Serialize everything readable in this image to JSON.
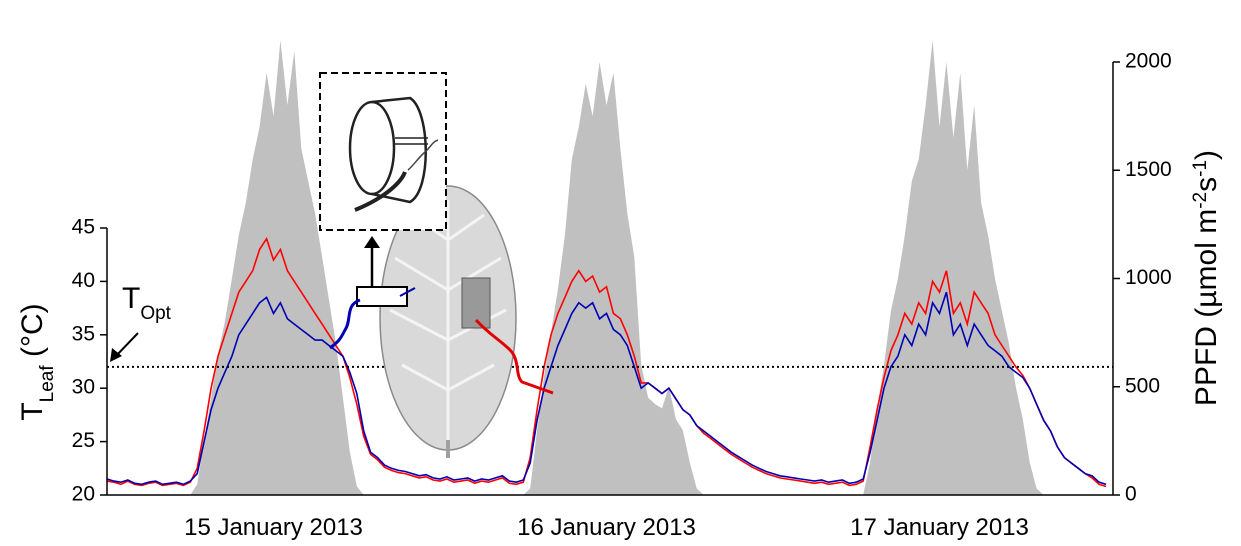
{
  "chart_data": {
    "type": "line",
    "x": [
      0,
      0.5,
      1,
      1.5,
      2,
      2.5,
      3,
      3.5,
      4,
      4.5,
      5,
      5.5,
      6,
      6.5,
      7,
      7.5,
      8,
      8.5,
      9,
      9.5,
      10,
      10.5,
      11,
      11.5,
      12,
      12.5,
      13,
      13.5,
      14,
      14.5,
      15,
      15.5,
      16,
      16.5,
      17,
      17.5,
      18,
      18.5,
      19,
      19.5,
      20,
      20.5,
      21,
      21.5,
      22,
      22.5,
      23,
      23.5,
      24,
      24.5,
      25,
      25.5,
      26,
      26.5,
      27,
      27.5,
      28,
      28.5,
      29,
      29.5,
      30,
      30.5,
      31,
      31.5,
      32,
      32.5,
      33,
      33.5,
      34,
      34.5,
      35,
      35.5,
      36,
      36.5,
      37,
      37.5,
      38,
      38.5,
      39,
      39.5,
      40,
      40.5,
      41,
      41.5,
      42,
      42.5,
      43,
      43.5,
      44,
      44.5,
      45,
      45.5,
      46,
      46.5,
      47,
      47.5,
      48,
      48.5,
      49,
      49.5,
      50,
      50.5,
      51,
      51.5,
      52,
      52.5,
      53,
      53.5,
      54,
      54.5,
      55,
      55.5,
      56,
      56.5,
      57,
      57.5,
      58,
      58.5,
      59,
      59.5,
      60,
      60.5,
      61,
      61.5,
      62,
      62.5,
      63,
      63.5,
      64,
      64.5,
      65,
      65.5,
      66,
      66.5,
      67,
      67.5,
      68,
      68.5,
      69,
      69.5,
      70,
      70.5,
      71,
      71.5,
      72
    ],
    "xlim": [
      0,
      72
    ],
    "xticks": [
      {
        "value": 12,
        "label": "15 January 2013"
      },
      {
        "value": 36,
        "label": "16 January 2013"
      },
      {
        "value": 60,
        "label": "17 January 2013"
      }
    ],
    "series": [
      {
        "type": "area",
        "axis": "y2",
        "color": "#c0c0c0",
        "values": [
          0,
          0,
          0,
          0,
          0,
          0,
          0,
          0,
          0,
          0,
          0,
          0,
          0,
          50,
          250,
          450,
          650,
          800,
          1000,
          1200,
          1350,
          1550,
          1700,
          1950,
          1750,
          2100,
          1800,
          2050,
          1600,
          1450,
          1300,
          1100,
          900,
          700,
          450,
          200,
          40,
          0,
          0,
          0,
          0,
          0,
          0,
          0,
          0,
          0,
          0,
          0,
          0,
          0,
          0,
          0,
          0,
          0,
          0,
          0,
          0,
          0,
          0,
          0,
          0,
          30,
          300,
          550,
          750,
          950,
          1200,
          1550,
          1700,
          1900,
          1750,
          2000,
          1800,
          1950,
          1600,
          1300,
          1100,
          600,
          450,
          420,
          400,
          500,
          350,
          300,
          150,
          30,
          0,
          0,
          0,
          0,
          0,
          0,
          0,
          0,
          0,
          0,
          0,
          0,
          0,
          0,
          0,
          0,
          0,
          0,
          0,
          0,
          0,
          0,
          0,
          0,
          150,
          400,
          600,
          850,
          1000,
          1200,
          1450,
          1550,
          1800,
          2100,
          1700,
          2000,
          1650,
          1950,
          1500,
          1800,
          1350,
          1200,
          1000,
          850,
          700,
          500,
          350,
          150,
          30,
          0,
          0,
          0,
          0,
          0,
          0,
          0,
          0,
          0,
          0
        ]
      },
      {
        "type": "line",
        "axis": "y",
        "color": "#ff0000",
        "values": [
          21.3,
          21.2,
          21.0,
          21.3,
          21.0,
          20.9,
          21.1,
          21.2,
          20.9,
          21.0,
          21.1,
          20.9,
          21.2,
          22.5,
          26,
          30,
          33,
          35,
          37,
          39,
          40,
          41,
          43,
          44,
          42,
          43,
          41,
          40,
          39,
          38,
          37,
          36,
          35,
          34,
          33,
          31,
          28.5,
          25.5,
          23.8,
          23.3,
          22.6,
          22.3,
          22.1,
          22.0,
          21.8,
          21.6,
          21.7,
          21.4,
          21.3,
          21.5,
          21.2,
          21.3,
          21.4,
          21.1,
          21.3,
          21.2,
          21.4,
          21.6,
          21.1,
          21.0,
          21.2,
          23.5,
          28,
          32,
          35,
          37,
          38.5,
          40,
          41,
          40,
          40.5,
          39,
          39.5,
          37,
          36.5,
          35,
          33,
          30.5,
          30.5,
          30,
          29.5,
          30,
          29,
          28,
          27.5,
          26.5,
          25.8,
          25.3,
          24.8,
          24.3,
          23.8,
          23.4,
          23.0,
          22.6,
          22.3,
          22.0,
          21.8,
          21.6,
          21.5,
          21.4,
          21.3,
          21.2,
          21.1,
          21.2,
          21.0,
          21.1,
          21.2,
          20.9,
          21.0,
          21.3,
          24.5,
          28,
          31,
          33.5,
          35,
          37,
          36,
          38,
          37,
          40,
          39,
          41,
          37,
          38,
          36,
          39,
          38,
          37,
          35,
          34,
          33,
          32,
          31.2,
          30,
          28.5,
          27,
          26,
          24.5,
          23.5,
          23,
          22.5,
          22,
          21.6,
          21.0,
          20.8
        ]
      },
      {
        "type": "line",
        "axis": "y",
        "color": "#0000b4",
        "values": [
          21.5,
          21.3,
          21.2,
          21.4,
          21.1,
          21.0,
          21.2,
          21.3,
          21.0,
          21.1,
          21.2,
          21.0,
          21.3,
          22,
          25,
          28,
          30,
          31.5,
          33,
          35,
          36,
          37,
          38,
          38.5,
          37,
          38,
          36.5,
          36,
          35.5,
          35,
          34.5,
          34.5,
          34,
          33.5,
          33,
          31.5,
          29.5,
          26,
          24,
          23.5,
          22.8,
          22.5,
          22.3,
          22.2,
          22,
          21.8,
          21.9,
          21.6,
          21.5,
          21.7,
          21.4,
          21.5,
          21.6,
          21.3,
          21.5,
          21.4,
          21.6,
          21.8,
          21.3,
          21.2,
          21.4,
          23,
          27,
          30,
          32,
          34,
          35.5,
          37,
          38,
          37.5,
          38,
          36.5,
          37,
          35.5,
          35,
          34,
          32,
          30,
          30.5,
          30,
          29.5,
          30,
          29,
          28,
          27.5,
          26.5,
          26,
          25.5,
          25,
          24.5,
          24,
          23.6,
          23.2,
          22.8,
          22.5,
          22.2,
          22,
          21.8,
          21.7,
          21.6,
          21.5,
          21.4,
          21.3,
          21.4,
          21.2,
          21.3,
          21.4,
          21.1,
          21.2,
          21.5,
          24,
          27,
          30,
          32,
          33,
          35,
          34,
          36,
          35,
          38,
          37,
          39,
          35,
          36,
          34,
          36,
          35,
          34,
          33.5,
          33,
          32,
          31.5,
          31,
          30,
          28.5,
          27,
          26,
          24.5,
          23.5,
          23,
          22.5,
          22,
          21.8,
          21.2,
          21.0
        ]
      }
    ],
    "ylim": [
      20,
      45
    ],
    "yticks": [
      20,
      25,
      30,
      35,
      40,
      45
    ],
    "y2lim": [
      0,
      2000
    ],
    "y2ticks": [
      0,
      500,
      1000,
      1500,
      2000
    ],
    "ylabel": [
      "T",
      "Leaf",
      " (°C)"
    ],
    "y2label": [
      "PPFD (µmol m",
      "-2",
      "s",
      "-1",
      ")"
    ],
    "topt": {
      "label": [
        "T",
        "Opt"
      ],
      "value": 32
    }
  }
}
